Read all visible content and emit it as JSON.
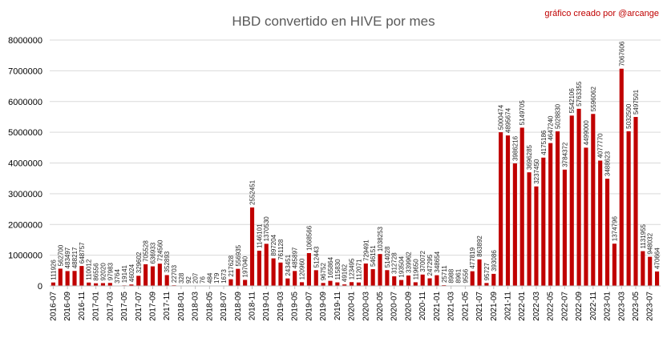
{
  "chart_data": {
    "type": "bar",
    "title": "HBD convertido en HIVE por mes",
    "credit": "gráfico creado por @arcange",
    "xlabel": "",
    "ylabel": "",
    "ylim": [
      0,
      8000000
    ],
    "yticks": [
      0,
      1000000,
      2000000,
      3000000,
      4000000,
      5000000,
      6000000,
      7000000,
      8000000
    ],
    "grid": true,
    "legend": "none",
    "bar_color": "#c00000",
    "categories": [
      "2016-07",
      "2016-08",
      "2016-09",
      "2016-10",
      "2016-11",
      "2016-12",
      "2017-01",
      "2017-02",
      "2017-03",
      "2017-04",
      "2017-05",
      "2017-06",
      "2017-07",
      "2017-08",
      "2017-09",
      "2017-10",
      "2017-11",
      "2017-12",
      "2018-01",
      "2018-02",
      "2018-03",
      "2018-04",
      "2018-05",
      "2018-06",
      "2018-07",
      "2018-08",
      "2018-09",
      "2018-10",
      "2018-11",
      "2018-12",
      "2019-01",
      "2019-02",
      "2019-03",
      "2019-04",
      "2019-05",
      "2019-06",
      "2019-07",
      "2019-08",
      "2019-09",
      "2019-10",
      "2019-11",
      "2019-12",
      "2020-01",
      "2020-02",
      "2020-03",
      "2020-04",
      "2020-05",
      "2020-06",
      "2020-07",
      "2020-08",
      "2020-09",
      "2020-10",
      "2020-11",
      "2020-12",
      "2021-01",
      "2021-02",
      "2021-03",
      "2021-04",
      "2021-05",
      "2021-06",
      "2021-07",
      "2021-08",
      "2021-09",
      "2021-10",
      "2021-11",
      "2021-12",
      "2022-01",
      "2022-02",
      "2022-03",
      "2022-04",
      "2022-05",
      "2022-06",
      "2022-07",
      "2022-08",
      "2022-09",
      "2022-10",
      "2022-11",
      "2022-12",
      "2023-01",
      "2023-02",
      "2023-03",
      "2023-04",
      "2023-05",
      "2023-06",
      "2023-07",
      "2023-08"
    ],
    "xtick_labels": [
      "2016-07",
      "2016-09",
      "2016-11",
      "2017-01",
      "2017-03",
      "2017-05",
      "2017-07",
      "2017-09",
      "2017-11",
      "2018-01",
      "2018-03",
      "2018-05",
      "2018-07",
      "2018-09",
      "2018-11",
      "2019-01",
      "2019-03",
      "2019-05",
      "2019-07",
      "2019-09",
      "2019-11",
      "2020-01",
      "2020-03",
      "2020-05",
      "2020-07",
      "2020-09",
      "2020-11",
      "2021-01",
      "2021-03",
      "2021-05",
      "2021-07",
      "2021-09",
      "2021-11",
      "2022-01",
      "2022-03",
      "2022-05",
      "2022-07",
      "2022-09",
      "2022-11",
      "2023-01",
      "2023-03",
      "2023-05",
      "2023-07"
    ],
    "values": [
      111926,
      562700,
      483497,
      488217,
      648757,
      110012,
      86556,
      92020,
      97983,
      3764,
      19141,
      46024,
      329602,
      705528,
      636933,
      724560,
      352893,
      22703,
      328,
      92,
      207,
      76,
      484,
      179,
      1673,
      217628,
      556935,
      197040,
      2552451,
      1146101,
      1370530,
      897204,
      761128,
      243451,
      485897,
      120960,
      1068566,
      512443,
      96752,
      165864,
      115830,
      49162,
      123495,
      112071,
      729491,
      546151,
      1038253,
      514028,
      312728,
      193504,
      339962,
      119650,
      370072,
      247295,
      348654,
      25711,
      8988,
      8961,
      9556,
      477819,
      863892,
      95727,
      393086,
      5000474,
      4895674,
      3986216,
      5149705,
      3696285,
      3237450,
      4175186,
      4647240,
      5028830,
      3784372,
      5542106,
      5763355,
      4499000,
      5596062,
      4077770,
      3488623,
      1374796,
      7067606,
      5032500,
      5497501,
      1131955,
      948032,
      470664
    ],
    "data_labels": [
      "111926",
      "562700",
      "483497",
      "488217",
      "648757",
      "110012",
      "86556",
      "92020",
      "97983",
      "3764",
      "19141",
      "46024",
      "329602",
      "705528",
      "636933",
      "724560",
      "352893",
      "22703",
      "328",
      "92",
      "207",
      "76",
      "484",
      "179",
      "1673",
      "217628",
      "556935",
      "197040",
      "2552451",
      "1146101",
      "1370530",
      "897204",
      "761128",
      "243451",
      "485897",
      "120960",
      "1068566",
      "512443",
      "96752",
      "165864",
      "115830",
      "49162",
      "123495",
      "112071",
      "729491",
      "546151",
      "1038253",
      "514028",
      "312728",
      "193504",
      "339962",
      "119650",
      "370072",
      "247295",
      "348654",
      "25711",
      "8988",
      "8961",
      "9556",
      "477819",
      "863892",
      "95727",
      "393086",
      "5000474",
      "4895674",
      "3986216",
      "5149705",
      "3696285",
      "3237450",
      "4175186",
      "4647240",
      "5028830",
      "3784372",
      "5542106",
      "5763355",
      "4499000",
      "5596062",
      "4077770",
      "3488623",
      "1374796",
      "7067606",
      "5032500",
      "5497501",
      "1131955",
      "948032",
      "470664"
    ]
  }
}
